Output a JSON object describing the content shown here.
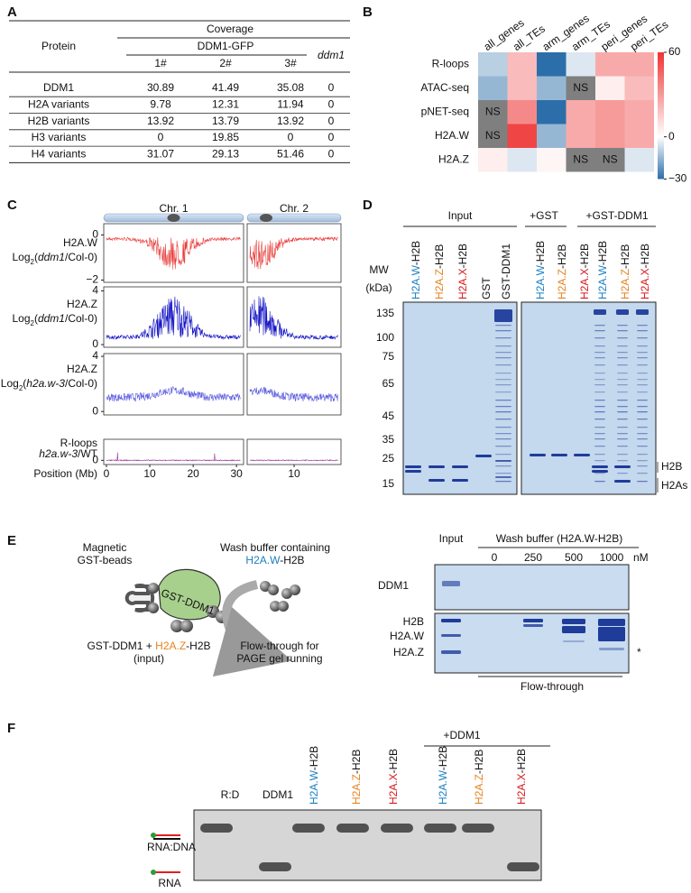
{
  "panel_a": {
    "label": "A",
    "protein_header": "Protein",
    "coverage_header": "Coverage",
    "group_header": "DDM1-GFP",
    "replicates": [
      "1#",
      "2#",
      "3#"
    ],
    "mutant_header": "ddm1",
    "rows": [
      [
        "DDM1",
        30.89,
        41.49,
        35.08,
        0
      ],
      [
        "H2A variants",
        9.78,
        12.31,
        11.94,
        0
      ],
      [
        "H2B variants",
        13.92,
        13.79,
        13.92,
        0
      ],
      [
        "H3 variants",
        0,
        19.85,
        0,
        0
      ],
      [
        "H4 variants",
        31.07,
        29.13,
        51.46,
        0
      ]
    ]
  },
  "chart_data": {
    "type": "heatmap",
    "label": "B",
    "columns": [
      "all_genes",
      "all_TEs",
      "arm_genes",
      "arm_TEs",
      "peri_genes",
      "peri_TEs"
    ],
    "rows": [
      "R-loops",
      "ATAC-seq",
      "pNET-seq",
      "H2A.W",
      "H2A.Z"
    ],
    "values": [
      [
        -10,
        20,
        -30,
        -5,
        25,
        25
      ],
      [
        -15,
        20,
        -15,
        "NS",
        5,
        20
      ],
      [
        "NS",
        35,
        -30,
        25,
        30,
        25
      ],
      [
        "NS",
        55,
        -15,
        25,
        30,
        25
      ],
      [
        5,
        -5,
        3,
        "NS",
        "NS",
        -5
      ]
    ],
    "low_color": "#2c6ea9",
    "high_color": "#ee3434",
    "na_color": "#7f7f7f",
    "clim": [
      -30,
      60
    ],
    "cticks": [
      60,
      0,
      {
        "value": -30,
        "label": "−30"
      }
    ]
  },
  "panel_c": {
    "label": "C",
    "chromosomes": [
      {
        "name": "Chr. 1",
        "xlim": [
          0,
          31
        ],
        "xticks": [
          0,
          10,
          20,
          30
        ]
      },
      {
        "name": "Chr. 2",
        "xlim": [
          0,
          20
        ],
        "xticks": [
          10
        ]
      }
    ],
    "xlabel": "Position (Mb)",
    "tracks": [
      {
        "name": "H2A.W",
        "color": "#e8403d",
        "unit": [
          {
            "text": "Log"
          },
          {
            "text": "2",
            "sub": true
          },
          {
            "text": "("
          },
          {
            "text": "ddm1",
            "italic": true
          },
          {
            "text": "/Col-0)"
          }
        ],
        "ylim": [
          -2.1,
          0.5
        ],
        "yticks": [
          0,
          {
            "value": -2,
            "label": "−2"
          }
        ]
      },
      {
        "name": "H2A.Z",
        "color": "#1212c4",
        "unit": [
          {
            "text": "Log"
          },
          {
            "text": "2",
            "sub": true
          },
          {
            "text": "("
          },
          {
            "text": "ddm1",
            "italic": true
          },
          {
            "text": "/Col-0)"
          }
        ],
        "ylim": [
          -0.2,
          4.3
        ],
        "yticks": [
          4,
          0
        ]
      },
      {
        "name": "H2A.Z",
        "color": "#5c5ce0",
        "unit": [
          {
            "text": "Log"
          },
          {
            "text": "2",
            "sub": true
          },
          {
            "text": "("
          },
          {
            "text": "h2a.w-3",
            "italic": true
          },
          {
            "text": "/Col-0)"
          }
        ],
        "ylim": [
          -0.25,
          4.2
        ],
        "yticks": [
          4,
          0
        ]
      },
      {
        "name": "R-loops",
        "color": "#982ea0",
        "unit": [
          {
            "text": "h2a.w-3",
            "italic": true
          },
          {
            "text": "/WT"
          }
        ],
        "ylim": [
          -0.4,
          2
        ],
        "yticks": [
          0
        ]
      }
    ]
  },
  "panel_d": {
    "label": "D",
    "groups": [
      "Input",
      "+GST",
      "+GST-DDM1"
    ],
    "lanes": [
      [
        {
          "text": "H2A.W",
          "color": "#1a7fc1"
        },
        {
          "text": "-H2B"
        }
      ],
      [
        {
          "text": "H2A.Z",
          "color": "#e8821e"
        },
        {
          "text": "-H2B"
        }
      ],
      [
        {
          "text": "H2A.X",
          "color": "#d7191c"
        },
        {
          "text": "-H2B"
        }
      ],
      [
        {
          "text": "GST"
        }
      ],
      [
        {
          "text": "GST-DDM1"
        }
      ],
      [
        {
          "text": "H2A.W",
          "color": "#1a7fc1"
        },
        {
          "text": "-H2B"
        }
      ],
      [
        {
          "text": "H2A.Z",
          "color": "#e8821e"
        },
        {
          "text": "-H2B"
        }
      ],
      [
        {
          "text": "H2A.X",
          "color": "#d7191c"
        },
        {
          "text": "-H2B"
        }
      ],
      [
        {
          "text": "H2A.W",
          "color": "#1a7fc1"
        },
        {
          "text": "-H2B"
        }
      ],
      [
        {
          "text": "H2A.Z",
          "color": "#e8821e"
        },
        {
          "text": "-H2B"
        }
      ],
      [
        {
          "text": "H2A.X",
          "color": "#d7191c"
        },
        {
          "text": "-H2B"
        }
      ]
    ],
    "mw_title": "MW",
    "mw_unit": "(kDa)",
    "mw": [
      135,
      100,
      75,
      65,
      45,
      35,
      25,
      15
    ],
    "bands": [
      "H2B",
      "H2As"
    ]
  },
  "panel_e": {
    "label": "E",
    "beads_title": [
      "Magnetic",
      "GST-beads"
    ],
    "bead_protein": "GST-DDM1",
    "wash_title": "Wash buffer containing",
    "wash_protein": [
      {
        "text": "H2A.W",
        "color": "#1a7fc1"
      },
      {
        "text": "-H2B"
      }
    ],
    "input_desc": [
      {
        "text": "GST-DDM1 + "
      },
      {
        "text": "H2A.Z",
        "color": "#e8821e"
      },
      {
        "text": "-H2B"
      }
    ],
    "input_note": "(input)",
    "flow_desc": [
      "Flow-through for",
      "PAGE gel running"
    ],
    "gel_input": "Input",
    "gel_wash": "Wash buffer (H2A.W-H2B)",
    "concentrations": [
      0,
      250,
      500,
      1000
    ],
    "conc_unit": "nM",
    "gel_row": "DDM1",
    "bands": [
      "H2B",
      "H2A.W",
      "H2A.Z"
    ],
    "star": "*",
    "flow_through": "Flow-through"
  },
  "panel_f": {
    "label": "F",
    "plus": "+DDM1",
    "lanes_plain": [
      "R:D",
      "DDM1"
    ],
    "lanes": [
      [
        {
          "text": "H2A.W",
          "color": "#1a7fc1"
        },
        {
          "text": "-H2B"
        }
      ],
      [
        {
          "text": "H2A.Z",
          "color": "#e8821e"
        },
        {
          "text": "-H2B"
        }
      ],
      [
        {
          "text": "H2A.X",
          "color": "#d7191c"
        },
        {
          "text": "-H2B"
        }
      ],
      [
        {
          "text": "H2A.W",
          "color": "#1a7fc1"
        },
        {
          "text": "-H2B"
        }
      ],
      [
        {
          "text": "H2A.Z",
          "color": "#e8821e"
        },
        {
          "text": "-H2B"
        }
      ],
      [
        {
          "text": "H2A.X",
          "color": "#d7191c"
        },
        {
          "text": "-H2B"
        }
      ]
    ],
    "species": [
      "RNA:DNA",
      "RNA"
    ]
  }
}
